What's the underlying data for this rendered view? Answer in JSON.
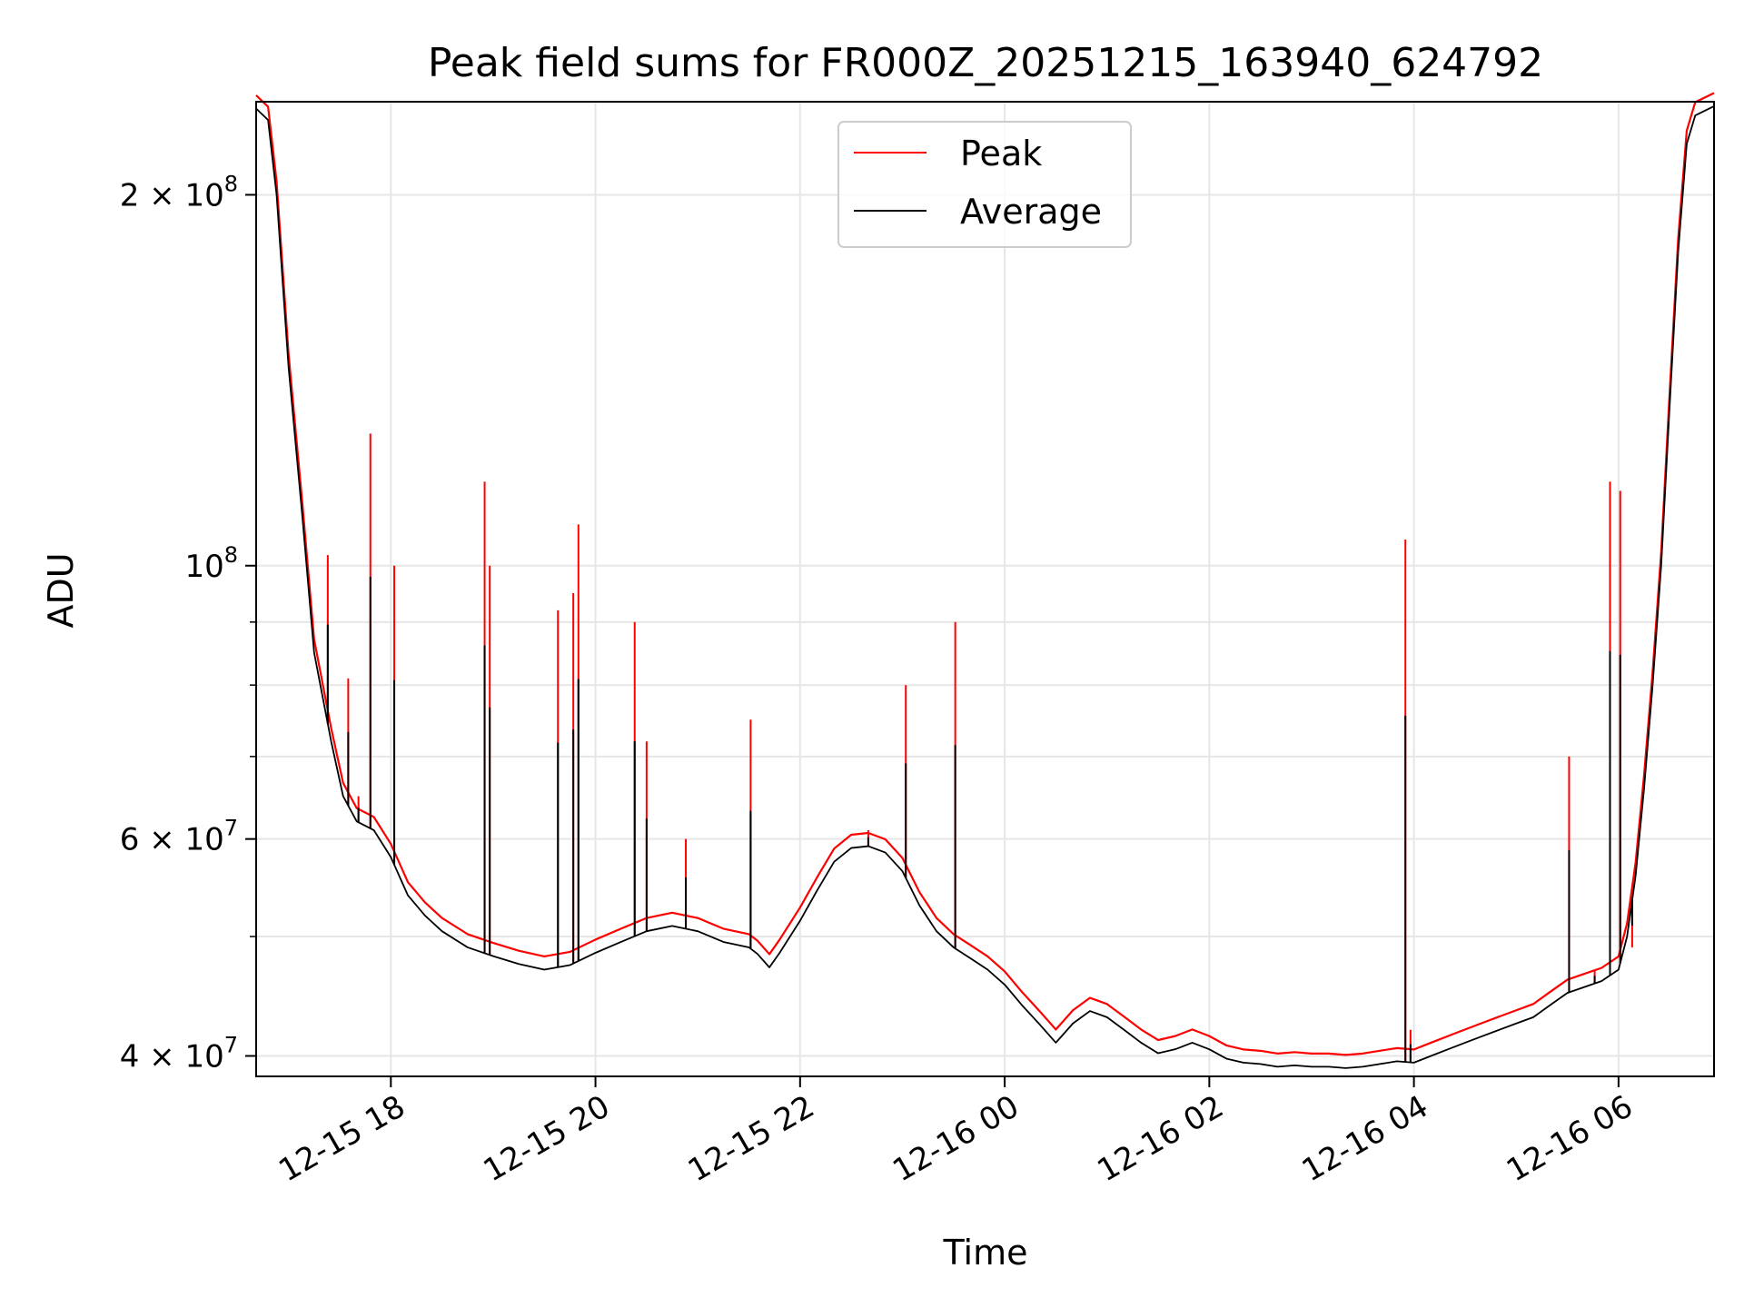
{
  "chart_data": {
    "type": "line",
    "title": "Peak field sums for FR000Z_20251215_163940_624792",
    "xlabel": "Time",
    "ylabel": "ADU",
    "y_scale": "log",
    "ylim": [
      38500000,
      238000000
    ],
    "xlim": [
      "2025-12-15 16:41",
      "2025-12-16 06:56"
    ],
    "grid": true,
    "legend_position": "upper center",
    "x_ticks": [
      {
        "t": "2025-12-15 18:00",
        "label": "12-15 18"
      },
      {
        "t": "2025-12-15 20:00",
        "label": "12-15 20"
      },
      {
        "t": "2025-12-15 22:00",
        "label": "12-15 22"
      },
      {
        "t": "2025-12-16 00:00",
        "label": "12-16 00"
      },
      {
        "t": "2025-12-16 02:00",
        "label": "12-16 02"
      },
      {
        "t": "2025-12-16 04:00",
        "label": "12-16 04"
      },
      {
        "t": "2025-12-16 06:00",
        "label": "12-16 06"
      }
    ],
    "y_ticks": [
      {
        "value": 40000000,
        "mantissa": "4",
        "exp": "7"
      },
      {
        "value": 60000000,
        "mantissa": "6",
        "exp": "7"
      },
      {
        "value": 100000000,
        "mantissa": "",
        "exp": "8"
      },
      {
        "value": 200000000,
        "mantissa": "2",
        "exp": "8"
      }
    ],
    "y_minor_ticks": [
      50000000,
      70000000,
      80000000,
      90000000
    ],
    "series": [
      {
        "name": "Average",
        "color": "#000000",
        "points": [
          [
            "2025-12-15 16:41",
            235000000.0
          ],
          [
            "2025-12-15 16:48",
            230000000.0
          ],
          [
            "2025-12-15 16:53",
            200000000.0
          ],
          [
            "2025-12-15 17:00",
            145000000.0
          ],
          [
            "2025-12-15 17:08",
            110000000.0
          ],
          [
            "2025-12-15 17:15",
            85000000.0
          ],
          [
            "2025-12-15 17:25",
            72000000.0
          ],
          [
            "2025-12-15 17:32",
            65000000.0
          ],
          [
            "2025-12-15 17:40",
            62000000.0
          ],
          [
            "2025-12-15 17:50",
            61000000.0
          ],
          [
            "2025-12-15 18:00",
            58000000.0
          ],
          [
            "2025-12-15 18:10",
            54000000.0
          ],
          [
            "2025-12-15 18:20",
            52000000.0
          ],
          [
            "2025-12-15 18:30",
            50500000.0
          ],
          [
            "2025-12-15 18:45",
            49000000.0
          ],
          [
            "2025-12-15 19:00",
            48200000.0
          ],
          [
            "2025-12-15 19:15",
            47500000.0
          ],
          [
            "2025-12-15 19:30",
            47000000.0
          ],
          [
            "2025-12-15 19:45",
            47400000.0
          ],
          [
            "2025-12-15 20:00",
            48500000.0
          ],
          [
            "2025-12-15 20:15",
            49500000.0
          ],
          [
            "2025-12-15 20:30",
            50500000.0
          ],
          [
            "2025-12-15 20:45",
            51000000.0
          ],
          [
            "2025-12-15 21:00",
            50500000.0
          ],
          [
            "2025-12-15 21:15",
            49500000.0
          ],
          [
            "2025-12-15 21:30",
            49000000.0
          ],
          [
            "2025-12-15 21:35",
            48400000.0
          ],
          [
            "2025-12-15 21:42",
            47200000.0
          ],
          [
            "2025-12-15 21:48",
            48500000.0
          ],
          [
            "2025-12-15 22:00",
            51500000.0
          ],
          [
            "2025-12-15 22:10",
            54500000.0
          ],
          [
            "2025-12-15 22:20",
            57500000.0
          ],
          [
            "2025-12-15 22:30",
            59000000.0
          ],
          [
            "2025-12-15 22:40",
            59200000.0
          ],
          [
            "2025-12-15 22:50",
            58500000.0
          ],
          [
            "2025-12-15 23:00",
            56500000.0
          ],
          [
            "2025-12-15 23:10",
            53000000.0
          ],
          [
            "2025-12-15 23:20",
            50500000.0
          ],
          [
            "2025-12-15 23:30",
            49000000.0
          ],
          [
            "2025-12-15 23:40",
            48000000.0
          ],
          [
            "2025-12-15 23:50",
            47000000.0
          ],
          [
            "2025-12-16 00:00",
            45700000.0
          ],
          [
            "2025-12-16 00:10",
            44000000.0
          ],
          [
            "2025-12-16 00:20",
            42500000.0
          ],
          [
            "2025-12-16 00:30",
            41000000.0
          ],
          [
            "2025-12-16 00:40",
            42500000.0
          ],
          [
            "2025-12-16 00:50",
            43500000.0
          ],
          [
            "2025-12-16 01:00",
            43000000.0
          ],
          [
            "2025-12-16 01:10",
            42000000.0
          ],
          [
            "2025-12-16 01:20",
            41000000.0
          ],
          [
            "2025-12-16 01:30",
            40200000.0
          ],
          [
            "2025-12-16 01:40",
            40500000.0
          ],
          [
            "2025-12-16 01:50",
            41000000.0
          ],
          [
            "2025-12-16 02:00",
            40500000.0
          ],
          [
            "2025-12-16 02:10",
            39800000.0
          ],
          [
            "2025-12-16 02:20",
            39500000.0
          ],
          [
            "2025-12-16 02:30",
            39400000.0
          ],
          [
            "2025-12-16 02:40",
            39200000.0
          ],
          [
            "2025-12-16 02:50",
            39300000.0
          ],
          [
            "2025-12-16 03:00",
            39200000.0
          ],
          [
            "2025-12-16 03:10",
            39200000.0
          ],
          [
            "2025-12-16 03:20",
            39100000.0
          ],
          [
            "2025-12-16 03:30",
            39200000.0
          ],
          [
            "2025-12-16 03:40",
            39400000.0
          ],
          [
            "2025-12-16 03:50",
            39600000.0
          ],
          [
            "2025-12-16 04:00",
            39500000.0
          ],
          [
            "2025-12-16 04:10",
            40000000.0
          ],
          [
            "2025-12-16 04:20",
            40500000.0
          ],
          [
            "2025-12-16 04:30",
            41000000.0
          ],
          [
            "2025-12-16 04:40",
            41500000.0
          ],
          [
            "2025-12-16 04:50",
            42000000.0
          ],
          [
            "2025-12-16 05:00",
            42500000.0
          ],
          [
            "2025-12-16 05:10",
            43000000.0
          ],
          [
            "2025-12-16 05:20",
            44000000.0
          ],
          [
            "2025-12-16 05:30",
            45000000.0
          ],
          [
            "2025-12-16 05:40",
            45500000.0
          ],
          [
            "2025-12-16 05:50",
            46000000.0
          ],
          [
            "2025-12-16 06:00",
            47000000.0
          ],
          [
            "2025-12-16 06:05",
            50000000.0
          ],
          [
            "2025-12-16 06:10",
            56000000.0
          ],
          [
            "2025-12-16 06:15",
            66000000.0
          ],
          [
            "2025-12-16 06:20",
            80000000.0
          ],
          [
            "2025-12-16 06:25",
            100000000.0
          ],
          [
            "2025-12-16 06:30",
            135000000.0
          ],
          [
            "2025-12-16 06:35",
            180000000.0
          ],
          [
            "2025-12-16 06:40",
            220000000.0
          ],
          [
            "2025-12-16 06:45",
            232000000.0
          ],
          [
            "2025-12-16 06:56",
            236000000.0
          ]
        ]
      },
      {
        "name": "Peak",
        "color": "#ff0000",
        "offset_points": [
          [
            "2025-12-15 17:23",
            102000000.0
          ],
          [
            "2025-12-15 17:35",
            81000000.0
          ],
          [
            "2025-12-15 17:41",
            65000000.0
          ],
          [
            "2025-12-15 17:48",
            128000000.0
          ],
          [
            "2025-12-15 18:02",
            100000000.0
          ],
          [
            "2025-12-15 18:55",
            117000000.0
          ],
          [
            "2025-12-15 18:58",
            100000000.0
          ],
          [
            "2025-12-15 19:38",
            92000000.0
          ],
          [
            "2025-12-15 19:47",
            95000000.0
          ],
          [
            "2025-12-15 19:50",
            108000000.0
          ],
          [
            "2025-12-15 20:23",
            90000000.0
          ],
          [
            "2025-12-15 20:30",
            72000000.0
          ],
          [
            "2025-12-15 20:53",
            60000000.0
          ],
          [
            "2025-12-15 21:31",
            75000000.0
          ],
          [
            "2025-12-15 22:40",
            61000000.0
          ],
          [
            "2025-12-15 23:02",
            80000000.0
          ],
          [
            "2025-12-15 23:31",
            90000000.0
          ],
          [
            "2025-12-16 03:55",
            105000000.0
          ],
          [
            "2025-12-16 03:58",
            42000000.0
          ],
          [
            "2025-12-16 05:31",
            70000000.0
          ],
          [
            "2025-12-16 05:46",
            47000000.0
          ],
          [
            "2025-12-16 05:55",
            117000000.0
          ],
          [
            "2025-12-16 06:01",
            115000000.0
          ],
          [
            "2025-12-16 06:08",
            49000000.0
          ]
        ]
      }
    ]
  }
}
